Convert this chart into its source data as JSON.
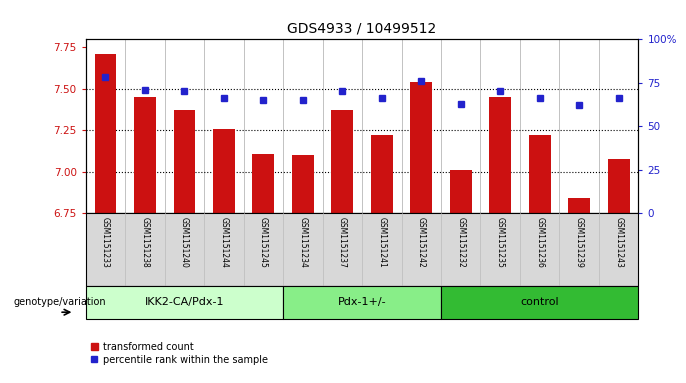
{
  "title": "GDS4933 / 10499512",
  "samples": [
    "GSM1151233",
    "GSM1151238",
    "GSM1151240",
    "GSM1151244",
    "GSM1151245",
    "GSM1151234",
    "GSM1151237",
    "GSM1151241",
    "GSM1151242",
    "GSM1151232",
    "GSM1151235",
    "GSM1151236",
    "GSM1151239",
    "GSM1151243"
  ],
  "bar_values": [
    7.71,
    7.45,
    7.37,
    7.26,
    7.11,
    7.1,
    7.37,
    7.22,
    7.54,
    7.01,
    7.45,
    7.22,
    6.84,
    7.08
  ],
  "dot_values": [
    78,
    71,
    70,
    66,
    65,
    65,
    70,
    66,
    76,
    63,
    70,
    66,
    62,
    66
  ],
  "groups": [
    {
      "label": "IKK2-CA/Pdx-1",
      "start": 0,
      "end": 5,
      "color": "#ccffcc"
    },
    {
      "label": "Pdx-1+/-",
      "start": 5,
      "end": 9,
      "color": "#88ee88"
    },
    {
      "label": "control",
      "start": 9,
      "end": 14,
      "color": "#33bb33"
    }
  ],
  "bar_color": "#cc1111",
  "dot_color": "#2222cc",
  "ylim_left": [
    6.75,
    7.8
  ],
  "ylim_right": [
    0,
    100
  ],
  "yticks_left": [
    6.75,
    7.0,
    7.25,
    7.5,
    7.75
  ],
  "yticks_right": [
    0,
    25,
    50,
    75,
    100
  ],
  "ytick_labels_right": [
    "0",
    "25",
    "50",
    "75",
    "100%"
  ],
  "bar_width": 0.55,
  "background_color": "#ffffff",
  "tick_color_left": "#cc1111",
  "tick_color_right": "#2222cc",
  "label_bg_color": "#d8d8d8",
  "label_sep_color": "#bbbbbb"
}
